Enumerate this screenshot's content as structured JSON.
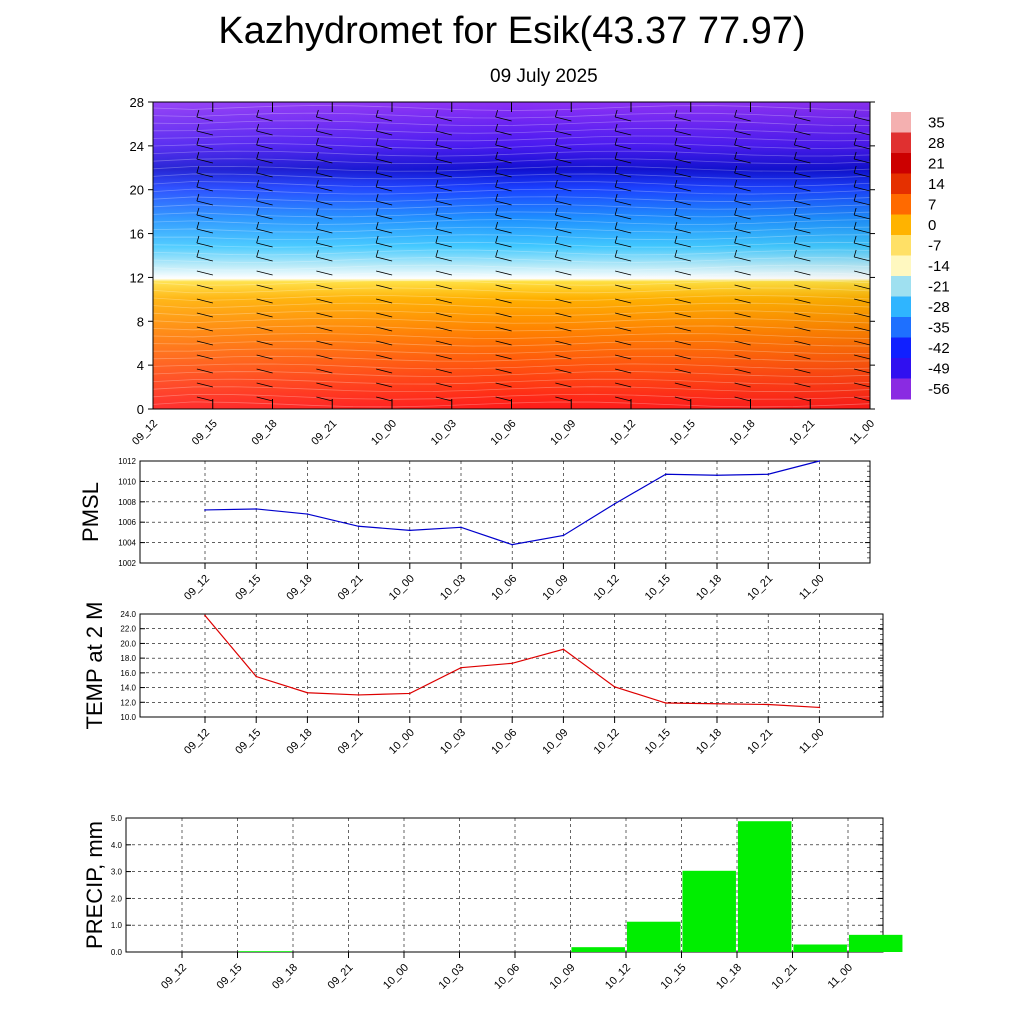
{
  "title": "Kazhydromet for Esik(43.37 77.97)",
  "subtitle": "09 July 2025",
  "chart_data": [
    {
      "type": "heatmap",
      "ylim": [
        0,
        28
      ],
      "y_ticks": [
        "0",
        "4",
        "8",
        "12",
        "16",
        "20",
        "24",
        "28"
      ],
      "x_ticks": [
        "09_12",
        "09_15",
        "09_18",
        "09_21",
        "10_00",
        "10_03",
        "10_06",
        "10_09",
        "10_12",
        "10_15",
        "10_18",
        "10_21",
        "11_00"
      ],
      "colorbar_labels": [
        "35",
        "28",
        "21",
        "14",
        "7",
        "0",
        "-7",
        "-14",
        "-21",
        "-28",
        "-35",
        "-42",
        "-49",
        "-56"
      ],
      "colorbar_colors": [
        "#f4b0b0",
        "#e03030",
        "#cc0000",
        "#e53000",
        "#ff6a00",
        "#ffb300",
        "#ffe066",
        "#fff8c0",
        "#9fe0f0",
        "#2fb5ff",
        "#1e70ff",
        "#1020ff",
        "#3010f0",
        "#8a2be2"
      ],
      "wind_barbs": true
    },
    {
      "type": "line",
      "ylabel": "PMSL",
      "ylim": [
        1002,
        1012
      ],
      "y_ticks": [
        "1002",
        "1004",
        "1006",
        "1008",
        "1010",
        "1012"
      ],
      "categories": [
        "09_12",
        "09_15",
        "09_18",
        "09_21",
        "10_00",
        "10_03",
        "10_06",
        "10_09",
        "10_12",
        "10_15",
        "10_18",
        "10_21",
        "11_00"
      ],
      "values": [
        1007.2,
        1007.3,
        1006.8,
        1005.6,
        1005.2,
        1005.5,
        1003.8,
        1004.7,
        1007.8,
        1010.7,
        1010.6,
        1010.7,
        1012.0
      ],
      "color": "#0000cc",
      "grid": true
    },
    {
      "type": "line",
      "ylabel": "TEMP at 2 M",
      "ylim": [
        10,
        24
      ],
      "y_ticks": [
        "10.0",
        "12.0",
        "14.0",
        "16.0",
        "18.0",
        "20.0",
        "22.0",
        "24.0"
      ],
      "categories": [
        "09_12",
        "09_15",
        "09_18",
        "09_21",
        "10_00",
        "10_03",
        "10_06",
        "10_09",
        "10_12",
        "10_15",
        "10_18",
        "10_21",
        "11_00"
      ],
      "values": [
        23.8,
        15.5,
        13.3,
        13.0,
        13.2,
        16.7,
        17.3,
        19.2,
        14.1,
        11.9,
        11.8,
        11.7,
        11.3
      ],
      "color": "#dd0000",
      "grid": true
    },
    {
      "type": "bar",
      "ylabel": "PRECIP, mm",
      "ylim": [
        0,
        5
      ],
      "y_ticks": [
        "0.0",
        "1.0",
        "2.0",
        "3.0",
        "4.0",
        "5.0"
      ],
      "categories": [
        "09_12",
        "09_15",
        "09_18",
        "09_21",
        "10_00",
        "10_03",
        "10_06",
        "10_09",
        "10_12",
        "10_15",
        "10_18",
        "10_21",
        "11_00"
      ],
      "values": [
        0,
        0.03,
        0,
        0,
        0,
        0,
        0,
        0.18,
        1.13,
        3.03,
        4.88,
        0.28,
        0.64
      ],
      "color": "#00ee00",
      "grid": true
    }
  ]
}
